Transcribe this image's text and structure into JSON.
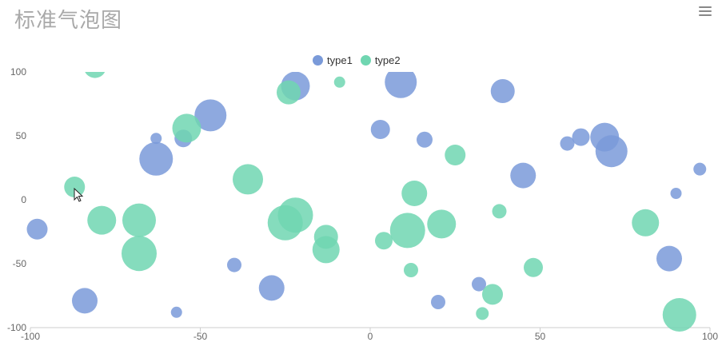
{
  "title": "标准气泡图",
  "menu": {
    "icon": "menu-icon"
  },
  "colors": {
    "type1": "#7a9ad9",
    "type2": "#70d6b1"
  },
  "chart_data": {
    "type": "scatter",
    "xlim": [
      -100,
      100
    ],
    "ylim": [
      -100,
      100
    ],
    "xticks": [
      -100,
      -50,
      0,
      50,
      100
    ],
    "yticks": [
      -100,
      -50,
      0,
      50,
      100
    ],
    "legend_position": "top-center",
    "grid": false,
    "series": [
      {
        "name": "type1",
        "color": "#7a9ad9",
        "points": [
          {
            "x": -98,
            "y": -23,
            "r": 13
          },
          {
            "x": -84,
            "y": -79,
            "r": 16
          },
          {
            "x": -63,
            "y": 48,
            "r": 7
          },
          {
            "x": -63,
            "y": 32,
            "r": 21
          },
          {
            "x": -57,
            "y": -88,
            "r": 7
          },
          {
            "x": -55,
            "y": 48,
            "r": 11
          },
          {
            "x": -47,
            "y": 66,
            "r": 20
          },
          {
            "x": -40,
            "y": -51,
            "r": 9
          },
          {
            "x": -29,
            "y": -69,
            "r": 16
          },
          {
            "x": -22,
            "y": 89,
            "r": 18
          },
          {
            "x": 3,
            "y": 55,
            "r": 12
          },
          {
            "x": 9,
            "y": 92,
            "r": 20
          },
          {
            "x": 16,
            "y": 47,
            "r": 10
          },
          {
            "x": 20,
            "y": -80,
            "r": 9
          },
          {
            "x": 32,
            "y": -66,
            "r": 9
          },
          {
            "x": 39,
            "y": 85,
            "r": 15
          },
          {
            "x": 45,
            "y": 19,
            "r": 16
          },
          {
            "x": 58,
            "y": 44,
            "r": 9
          },
          {
            "x": 62,
            "y": 49,
            "r": 11
          },
          {
            "x": 69,
            "y": 49,
            "r": 18
          },
          {
            "x": 71,
            "y": 38,
            "r": 20
          },
          {
            "x": 88,
            "y": -46,
            "r": 16
          },
          {
            "x": 90,
            "y": 5,
            "r": 7
          },
          {
            "x": 97,
            "y": 24,
            "r": 8
          }
        ]
      },
      {
        "name": "type2",
        "color": "#70d6b1",
        "points": [
          {
            "x": -87,
            "y": 10,
            "r": 13
          },
          {
            "x": -81,
            "y": 104,
            "r": 14
          },
          {
            "x": -79,
            "y": -16,
            "r": 18
          },
          {
            "x": -68,
            "y": -16,
            "r": 21
          },
          {
            "x": -68,
            "y": -42,
            "r": 22
          },
          {
            "x": -54,
            "y": 56,
            "r": 18
          },
          {
            "x": -36,
            "y": 16,
            "r": 19
          },
          {
            "x": -24,
            "y": 84,
            "r": 15
          },
          {
            "x": -25,
            "y": -18,
            "r": 22
          },
          {
            "x": -22,
            "y": -12,
            "r": 22
          },
          {
            "x": -13,
            "y": -29,
            "r": 15
          },
          {
            "x": -13,
            "y": -39,
            "r": 17
          },
          {
            "x": -9,
            "y": 92,
            "r": 7
          },
          {
            "x": 4,
            "y": -32,
            "r": 11
          },
          {
            "x": 11,
            "y": -24,
            "r": 22
          },
          {
            "x": 12,
            "y": -55,
            "r": 9
          },
          {
            "x": 13,
            "y": 5,
            "r": 16
          },
          {
            "x": 21,
            "y": -19,
            "r": 18
          },
          {
            "x": 25,
            "y": 35,
            "r": 13
          },
          {
            "x": 33,
            "y": -89,
            "r": 8
          },
          {
            "x": 36,
            "y": -74,
            "r": 13
          },
          {
            "x": 38,
            "y": -9,
            "r": 9
          },
          {
            "x": 48,
            "y": -53,
            "r": 12
          },
          {
            "x": 81,
            "y": -18,
            "r": 17
          },
          {
            "x": 91,
            "y": -90,
            "r": 21
          }
        ]
      }
    ]
  }
}
